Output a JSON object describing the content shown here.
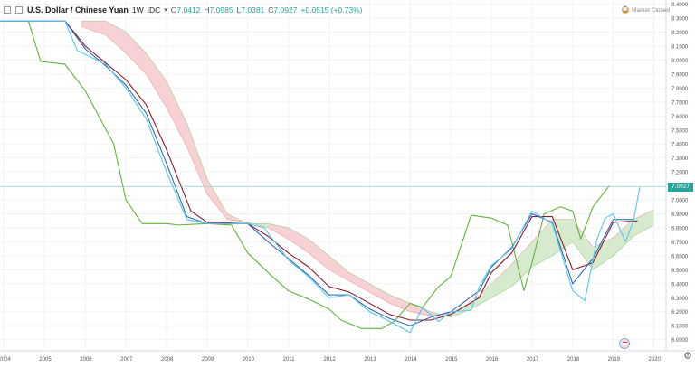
{
  "header": {
    "symbol": "U.S. Dollar / Chinese Yuan",
    "interval": "1W",
    "exchange": "IDC",
    "ohlc": {
      "o": "7.0412",
      "h": "7.0985",
      "l": "7.0381",
      "c": "7.0927"
    },
    "change": "+0.0515 (+0.73%)"
  },
  "status": {
    "label": "Market Closed",
    "icon": "clock-icon"
  },
  "last_price_label": "7.0927",
  "colors": {
    "ichimoku_cloud_bear": "#f6c9cc",
    "ichimoku_cloud_bull": "#cfe8c6",
    "price": "#59c6ec",
    "tenkan": "#1f5fb8",
    "kijun": "#8b1a2b",
    "lagging": "#63b33b",
    "last_price_tag": "#26a69a"
  },
  "chart_data": {
    "type": "line",
    "x_ticks": [
      "2004",
      "2005",
      "2006",
      "2007",
      "2008",
      "2009",
      "2010",
      "2011",
      "2012",
      "2013",
      "2014",
      "2015",
      "2016",
      "2017",
      "2018",
      "2019",
      "2020"
    ],
    "y_ticks": [
      "8.4000",
      "8.3000",
      "8.2000",
      "8.1000",
      "8.0000",
      "7.9000",
      "7.8000",
      "7.7000",
      "7.6000",
      "7.5000",
      "7.4000",
      "7.3000",
      "7.2000",
      "7.1000",
      "7.0000",
      "6.9000",
      "6.8000",
      "6.7000",
      "6.6000",
      "6.5000",
      "6.4000",
      "6.3000",
      "6.2000",
      "6.1000",
      "6.0000"
    ],
    "ylim": [
      5.92,
      8.43
    ],
    "xlim": [
      2003.9,
      2020.3
    ],
    "series": [
      {
        "name": "price",
        "x": [
          2003.9,
          2005.5,
          2005.8,
          2006.5,
          2007.0,
          2007.5,
          2008.0,
          2008.5,
          2009.0,
          2010.0,
          2010.4,
          2010.8,
          2011.0,
          2011.5,
          2012.0,
          2012.5,
          2013.0,
          2013.5,
          2014.0,
          2014.3,
          2014.7,
          2015.0,
          2015.5,
          2015.7,
          2016.0,
          2016.5,
          2017.0,
          2017.5,
          2018.0,
          2018.3,
          2018.6,
          2018.8,
          2019.0,
          2019.3,
          2019.5,
          2019.65
        ],
        "y": [
          8.28,
          8.28,
          8.07,
          7.97,
          7.8,
          7.58,
          7.2,
          6.86,
          6.83,
          6.83,
          6.8,
          6.65,
          6.57,
          6.45,
          6.3,
          6.32,
          6.2,
          6.13,
          6.05,
          6.23,
          6.13,
          6.2,
          6.21,
          6.38,
          6.53,
          6.65,
          6.92,
          6.83,
          6.35,
          6.28,
          6.72,
          6.87,
          6.9,
          6.7,
          6.85,
          7.09
        ]
      },
      {
        "name": "lagging",
        "x": [
          2003.9,
          2004.6,
          2004.9,
          2005.5,
          2006.0,
          2006.7,
          2007.0,
          2007.4,
          2008.0,
          2008.3,
          2009.0,
          2009.6,
          2010.0,
          2010.5,
          2011.0,
          2011.5,
          2012.0,
          2012.3,
          2012.8,
          2013.3,
          2013.6,
          2014.0,
          2014.3,
          2014.7,
          2015.0,
          2015.5,
          2016.0,
          2016.4,
          2016.8,
          2017.0,
          2017.3,
          2017.7,
          2018.0,
          2018.2,
          2018.5,
          2018.9
        ],
        "y": [
          8.28,
          8.28,
          7.99,
          7.97,
          7.78,
          7.4,
          7.0,
          6.83,
          6.83,
          6.82,
          6.83,
          6.82,
          6.62,
          6.48,
          6.35,
          6.29,
          6.22,
          6.14,
          6.08,
          6.08,
          6.13,
          6.26,
          6.23,
          6.38,
          6.45,
          6.89,
          6.87,
          6.82,
          6.35,
          6.55,
          6.9,
          6.95,
          6.92,
          6.72,
          6.95,
          7.1
        ]
      },
      {
        "name": "tenkan",
        "x": [
          2003.9,
          2005.5,
          2006.0,
          2006.5,
          2007.0,
          2007.5,
          2008.0,
          2008.5,
          2009.0,
          2010.0,
          2010.5,
          2011.0,
          2011.5,
          2012.0,
          2012.5,
          2013.0,
          2013.5,
          2014.0,
          2014.5,
          2015.0,
          2015.7,
          2016.0,
          2016.5,
          2017.0,
          2017.5,
          2018.0,
          2018.5,
          2019.0,
          2019.5
        ],
        "y": [
          8.28,
          8.28,
          8.08,
          7.96,
          7.82,
          7.62,
          7.26,
          6.88,
          6.83,
          6.83,
          6.7,
          6.58,
          6.46,
          6.32,
          6.32,
          6.22,
          6.15,
          6.1,
          6.16,
          6.2,
          6.35,
          6.52,
          6.66,
          6.9,
          6.84,
          6.4,
          6.58,
          6.86,
          6.86
        ]
      },
      {
        "name": "kijun",
        "x": [
          2003.9,
          2005.5,
          2006.0,
          2006.5,
          2007.0,
          2007.5,
          2008.0,
          2008.6,
          2009.0,
          2010.0,
          2010.5,
          2011.0,
          2011.5,
          2012.0,
          2012.5,
          2013.0,
          2013.5,
          2014.0,
          2014.5,
          2015.0,
          2015.7,
          2016.0,
          2016.5,
          2017.0,
          2017.5,
          2018.0,
          2018.5,
          2019.0,
          2019.6
        ],
        "y": [
          8.28,
          8.28,
          8.1,
          7.98,
          7.86,
          7.68,
          7.36,
          6.92,
          6.84,
          6.83,
          6.74,
          6.62,
          6.52,
          6.38,
          6.34,
          6.26,
          6.18,
          6.14,
          6.14,
          6.18,
          6.3,
          6.48,
          6.62,
          6.88,
          6.88,
          6.5,
          6.55,
          6.84,
          6.85
        ]
      },
      {
        "name": "cloud_upper",
        "x": [
          2005.9,
          2006.5,
          2007.0,
          2007.5,
          2008.0,
          2008.5,
          2009.0,
          2009.5,
          2010.0,
          2010.5,
          2011.0,
          2011.5,
          2012.0,
          2012.5,
          2013.0,
          2013.5,
          2014.0,
          2014.5,
          2015.0,
          2015.5,
          2016.0,
          2016.5,
          2017.0,
          2017.5,
          2018.0,
          2018.5,
          2019.0,
          2019.5,
          2020.0
        ],
        "y": [
          8.24,
          8.18,
          8.05,
          7.9,
          7.66,
          7.38,
          7.04,
          6.86,
          6.84,
          6.8,
          6.72,
          6.62,
          6.5,
          6.42,
          6.34,
          6.26,
          6.2,
          6.17,
          6.19,
          6.26,
          6.4,
          6.54,
          6.7,
          6.86,
          6.86,
          6.66,
          6.73,
          6.86,
          6.93
        ]
      },
      {
        "name": "cloud_lower",
        "x": [
          2005.9,
          2006.5,
          2007.0,
          2007.5,
          2008.0,
          2008.5,
          2009.0,
          2009.5,
          2010.0,
          2010.5,
          2011.0,
          2011.5,
          2012.0,
          2012.5,
          2013.0,
          2013.5,
          2014.0,
          2014.5,
          2015.0,
          2015.5,
          2016.0,
          2016.5,
          2017.0,
          2017.5,
          2018.0,
          2018.5,
          2019.0,
          2019.5,
          2020.0
        ],
        "y": [
          8.28,
          8.28,
          8.2,
          8.05,
          7.85,
          7.55,
          7.15,
          6.9,
          6.83,
          6.83,
          6.8,
          6.72,
          6.6,
          6.48,
          6.4,
          6.32,
          6.26,
          6.2,
          6.16,
          6.22,
          6.3,
          6.38,
          6.52,
          6.6,
          6.7,
          6.5,
          6.6,
          6.74,
          6.82
        ]
      }
    ]
  }
}
